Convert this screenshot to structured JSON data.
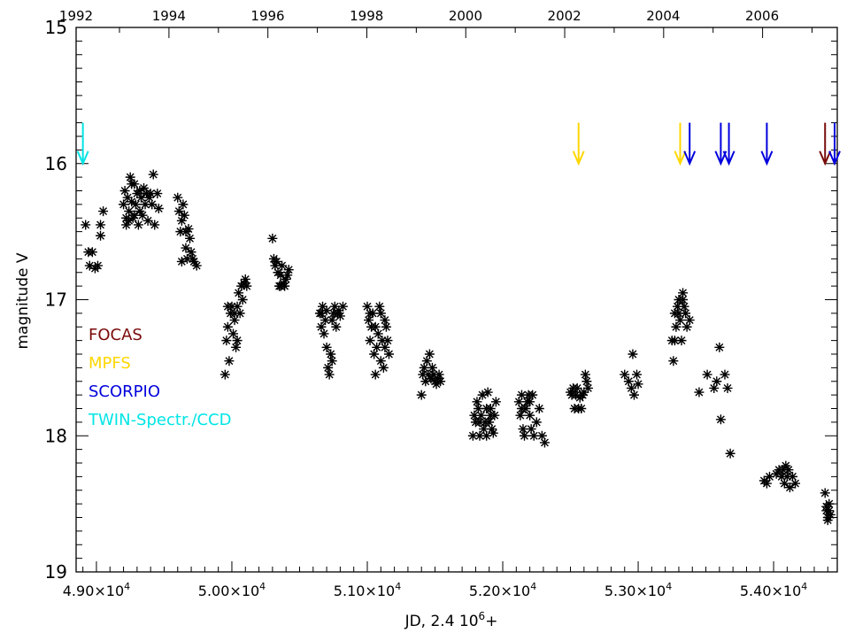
{
  "chart_data": {
    "type": "scatter",
    "title": "",
    "xlabel": "JD, 2.4 10",
    "xlabel_sup": "6",
    "xlabel_suffix": "+",
    "ylabel": "magnitude V",
    "xlim": [
      48850,
      54470
    ],
    "ylim": [
      19,
      15
    ],
    "y_inverted": true,
    "x_ticks": [
      {
        "value": 49000,
        "label": "4.90×10",
        "exp": "4"
      },
      {
        "value": 50000,
        "label": "5.00×10",
        "exp": "4"
      },
      {
        "value": 51000,
        "label": "5.10×10",
        "exp": "4"
      },
      {
        "value": 52000,
        "label": "5.20×10",
        "exp": "4"
      },
      {
        "value": 53000,
        "label": "5.30×10",
        "exp": "4"
      },
      {
        "value": 54000,
        "label": "5.40×10",
        "exp": "4"
      }
    ],
    "top_ticks": [
      {
        "value": 48805,
        "label": "1992"
      },
      {
        "value": 49535,
        "label": "1994"
      },
      {
        "value": 50265,
        "label": "1996"
      },
      {
        "value": 50995,
        "label": "1998"
      },
      {
        "value": 51725,
        "label": "2000"
      },
      {
        "value": 52455,
        "label": "2002"
      },
      {
        "value": 53185,
        "label": "2004"
      },
      {
        "value": 53915,
        "label": "2006"
      }
    ],
    "y_ticks": [
      {
        "value": 15,
        "label": "15"
      },
      {
        "value": 16,
        "label": "16"
      },
      {
        "value": 17,
        "label": "17"
      },
      {
        "value": 18,
        "label": "18"
      },
      {
        "value": 19,
        "label": "19"
      }
    ],
    "legend": [
      {
        "label": "FOCAS",
        "color": "#7a0a0a"
      },
      {
        "label": "MPFS",
        "color": "#ffd700"
      },
      {
        "label": "SCORPIO",
        "color": "#0000dd"
      },
      {
        "label": "TWIN-Spectr./CCD",
        "color": "#00e5e5"
      }
    ],
    "legend_placement": "left-middle",
    "arrows": [
      {
        "x": 48900,
        "instrument": "TWIN-Spectr./CCD",
        "color": "#00e5e5"
      },
      {
        "x": 52560,
        "instrument": "MPFS",
        "color": "#ffd700"
      },
      {
        "x": 53310,
        "instrument": "MPFS",
        "color": "#ffd700"
      },
      {
        "x": 53380,
        "instrument": "SCORPIO",
        "color": "#0000dd"
      },
      {
        "x": 53610,
        "instrument": "SCORPIO",
        "color": "#0000dd"
      },
      {
        "x": 53670,
        "instrument": "SCORPIO",
        "color": "#0000dd"
      },
      {
        "x": 53950,
        "instrument": "SCORPIO",
        "color": "#0000dd"
      },
      {
        "x": 54380,
        "instrument": "FOCAS",
        "color": "#7a0a0a"
      },
      {
        "x": 54470,
        "instrument": "SCORPIO",
        "color": "#0000dd"
      }
    ],
    "points": [
      [
        48920,
        16.45
      ],
      [
        48940,
        16.65
      ],
      [
        48950,
        16.75
      ],
      [
        48970,
        16.65
      ],
      [
        49010,
        16.75
      ],
      [
        49030,
        16.53
      ],
      [
        49050,
        16.35
      ],
      [
        49030,
        16.45
      ],
      [
        48990,
        16.77
      ],
      [
        49200,
        16.3
      ],
      [
        49210,
        16.2
      ],
      [
        49220,
        16.4
      ],
      [
        49230,
        16.25
      ],
      [
        49240,
        16.35
      ],
      [
        49250,
        16.1
      ],
      [
        49260,
        16.28
      ],
      [
        49270,
        16.4
      ],
      [
        49280,
        16.15
      ],
      [
        49290,
        16.3
      ],
      [
        49300,
        16.22
      ],
      [
        49310,
        16.45
      ],
      [
        49320,
        16.35
      ],
      [
        49330,
        16.25
      ],
      [
        49340,
        16.38
      ],
      [
        49350,
        16.18
      ],
      [
        49360,
        16.3
      ],
      [
        49370,
        16.22
      ],
      [
        49380,
        16.42
      ],
      [
        49390,
        16.25
      ],
      [
        49400,
        16.22
      ],
      [
        49410,
        16.3
      ],
      [
        49420,
        16.08
      ],
      [
        49430,
        16.45
      ],
      [
        49450,
        16.22
      ],
      [
        49460,
        16.33
      ],
      [
        49220,
        16.45
      ],
      [
        49240,
        16.42
      ],
      [
        49260,
        16.15
      ],
      [
        49280,
        16.38
      ],
      [
        49320,
        16.2
      ],
      [
        49600,
        16.25
      ],
      [
        49610,
        16.35
      ],
      [
        49620,
        16.5
      ],
      [
        49630,
        16.42
      ],
      [
        49640,
        16.3
      ],
      [
        49650,
        16.38
      ],
      [
        49660,
        16.62
      ],
      [
        49670,
        16.7
      ],
      [
        49680,
        16.48
      ],
      [
        49690,
        16.55
      ],
      [
        49700,
        16.65
      ],
      [
        49710,
        16.7
      ],
      [
        49720,
        16.72
      ],
      [
        49740,
        16.75
      ],
      [
        49630,
        16.72
      ],
      [
        49660,
        16.5
      ],
      [
        49950,
        17.55
      ],
      [
        49960,
        17.3
      ],
      [
        49970,
        17.2
      ],
      [
        49980,
        17.45
      ],
      [
        49990,
        17.1
      ],
      [
        50000,
        17.05
      ],
      [
        50010,
        17.25
      ],
      [
        50020,
        17.15
      ],
      [
        50030,
        17.35
      ],
      [
        50040,
        17.05
      ],
      [
        50050,
        16.95
      ],
      [
        50060,
        17.1
      ],
      [
        50070,
        16.9
      ],
      [
        50080,
        17.0
      ],
      [
        50090,
        16.88
      ],
      [
        50100,
        16.85
      ],
      [
        50110,
        16.9
      ],
      [
        49970,
        17.05
      ],
      [
        50020,
        17.1
      ],
      [
        50040,
        17.3
      ],
      [
        50300,
        16.55
      ],
      [
        50310,
        16.7
      ],
      [
        50320,
        16.75
      ],
      [
        50330,
        16.72
      ],
      [
        50340,
        16.8
      ],
      [
        50350,
        16.9
      ],
      [
        50360,
        16.82
      ],
      [
        50370,
        16.75
      ],
      [
        50380,
        16.88
      ],
      [
        50390,
        16.9
      ],
      [
        50400,
        16.85
      ],
      [
        50410,
        16.82
      ],
      [
        50420,
        16.78
      ],
      [
        50360,
        16.9
      ],
      [
        50650,
        17.1
      ],
      [
        50660,
        17.2
      ],
      [
        50670,
        17.05
      ],
      [
        50680,
        17.25
      ],
      [
        50690,
        17.15
      ],
      [
        50700,
        17.35
      ],
      [
        50710,
        17.5
      ],
      [
        50720,
        17.55
      ],
      [
        50730,
        17.4
      ],
      [
        50740,
        17.45
      ],
      [
        50750,
        17.1
      ],
      [
        50760,
        17.05
      ],
      [
        50770,
        17.2
      ],
      [
        50780,
        17.1
      ],
      [
        50790,
        17.08
      ],
      [
        50800,
        17.12
      ],
      [
        50820,
        17.05
      ],
      [
        50660,
        17.1
      ],
      [
        50700,
        17.08
      ],
      [
        50740,
        17.15
      ],
      [
        51000,
        17.05
      ],
      [
        51010,
        17.15
      ],
      [
        51020,
        17.3
      ],
      [
        51030,
        17.2
      ],
      [
        51040,
        17.1
      ],
      [
        51050,
        17.4
      ],
      [
        51060,
        17.55
      ],
      [
        51070,
        17.35
      ],
      [
        51080,
        17.25
      ],
      [
        51090,
        17.05
      ],
      [
        51100,
        17.45
      ],
      [
        51110,
        17.3
      ],
      [
        51120,
        17.5
      ],
      [
        51130,
        17.15
      ],
      [
        51140,
        17.2
      ],
      [
        51150,
        17.3
      ],
      [
        51160,
        17.4
      ],
      [
        51020,
        17.1
      ],
      [
        51060,
        17.2
      ],
      [
        51100,
        17.1
      ],
      [
        51130,
        17.35
      ],
      [
        51400,
        17.7
      ],
      [
        51410,
        17.55
      ],
      [
        51420,
        17.5
      ],
      [
        51430,
        17.6
      ],
      [
        51440,
        17.45
      ],
      [
        51450,
        17.55
      ],
      [
        51460,
        17.4
      ],
      [
        51470,
        17.58
      ],
      [
        51480,
        17.5
      ],
      [
        51490,
        17.55
      ],
      [
        51500,
        17.6
      ],
      [
        51510,
        17.62
      ],
      [
        51520,
        17.58
      ],
      [
        51530,
        17.55
      ],
      [
        51540,
        17.6
      ],
      [
        51780,
        18.0
      ],
      [
        51790,
        17.85
      ],
      [
        51800,
        17.9
      ],
      [
        51810,
        17.75
      ],
      [
        51820,
        17.8
      ],
      [
        51830,
        18.0
      ],
      [
        51840,
        17.85
      ],
      [
        51850,
        17.7
      ],
      [
        51860,
        17.95
      ],
      [
        51870,
        17.9
      ],
      [
        51880,
        17.8
      ],
      [
        51890,
        17.68
      ],
      [
        51900,
        17.9
      ],
      [
        51910,
        17.85
      ],
      [
        51920,
        17.95
      ],
      [
        51930,
        17.98
      ],
      [
        51940,
        17.85
      ],
      [
        51950,
        17.75
      ],
      [
        51830,
        17.9
      ],
      [
        51880,
        18.0
      ],
      [
        51910,
        17.8
      ],
      [
        52120,
        17.75
      ],
      [
        52130,
        17.85
      ],
      [
        52140,
        17.7
      ],
      [
        52150,
        17.95
      ],
      [
        52160,
        18.0
      ],
      [
        52170,
        17.8
      ],
      [
        52180,
        17.75
      ],
      [
        52190,
        17.7
      ],
      [
        52200,
        17.85
      ],
      [
        52210,
        17.95
      ],
      [
        52220,
        17.7
      ],
      [
        52230,
        18.0
      ],
      [
        52250,
        17.9
      ],
      [
        52270,
        17.8
      ],
      [
        52290,
        18.0
      ],
      [
        52310,
        18.05
      ],
      [
        52140,
        17.8
      ],
      [
        52200,
        17.75
      ],
      [
        52500,
        17.68
      ],
      [
        52510,
        17.7
      ],
      [
        52520,
        17.65
      ],
      [
        52530,
        17.8
      ],
      [
        52540,
        17.7
      ],
      [
        52550,
        17.65
      ],
      [
        52560,
        17.8
      ],
      [
        52570,
        17.72
      ],
      [
        52580,
        17.8
      ],
      [
        52590,
        17.7
      ],
      [
        52600,
        17.68
      ],
      [
        52610,
        17.55
      ],
      [
        52620,
        17.6
      ],
      [
        52630,
        17.65
      ],
      [
        52900,
        17.55
      ],
      [
        52930,
        17.6
      ],
      [
        52950,
        17.65
      ],
      [
        52960,
        17.4
      ],
      [
        52970,
        17.7
      ],
      [
        52990,
        17.55
      ],
      [
        53000,
        17.62
      ],
      [
        53250,
        17.3
      ],
      [
        53260,
        17.45
      ],
      [
        53270,
        17.1
      ],
      [
        53280,
        17.2
      ],
      [
        53290,
        17.05
      ],
      [
        53300,
        17.0
      ],
      [
        53310,
        17.15
      ],
      [
        53320,
        17.3
      ],
      [
        53330,
        16.95
      ],
      [
        53340,
        17.05
      ],
      [
        53350,
        17.1
      ],
      [
        53360,
        17.2
      ],
      [
        53380,
        17.15
      ],
      [
        53270,
        17.3
      ],
      [
        53300,
        17.1
      ],
      [
        53330,
        17.0
      ],
      [
        53450,
        17.68
      ],
      [
        53510,
        17.55
      ],
      [
        53560,
        17.65
      ],
      [
        53580,
        17.6
      ],
      [
        53600,
        17.35
      ],
      [
        53610,
        17.88
      ],
      [
        53640,
        17.55
      ],
      [
        53660,
        17.65
      ],
      [
        53680,
        18.13
      ],
      [
        53930,
        18.33
      ],
      [
        53950,
        18.35
      ],
      [
        53970,
        18.3
      ],
      [
        54020,
        18.28
      ],
      [
        54040,
        18.25
      ],
      [
        54060,
        18.3
      ],
      [
        54080,
        18.35
      ],
      [
        54090,
        18.22
      ],
      [
        54100,
        18.3
      ],
      [
        54110,
        18.25
      ],
      [
        54120,
        18.38
      ],
      [
        54140,
        18.3
      ],
      [
        54160,
        18.35
      ],
      [
        54070,
        18.25
      ],
      [
        54380,
        18.42
      ],
      [
        54390,
        18.55
      ],
      [
        54400,
        18.6
      ],
      [
        54410,
        18.5
      ],
      [
        54420,
        18.58
      ],
      [
        54390,
        18.52
      ],
      [
        54400,
        18.62
      ],
      [
        54410,
        18.55
      ]
    ]
  }
}
